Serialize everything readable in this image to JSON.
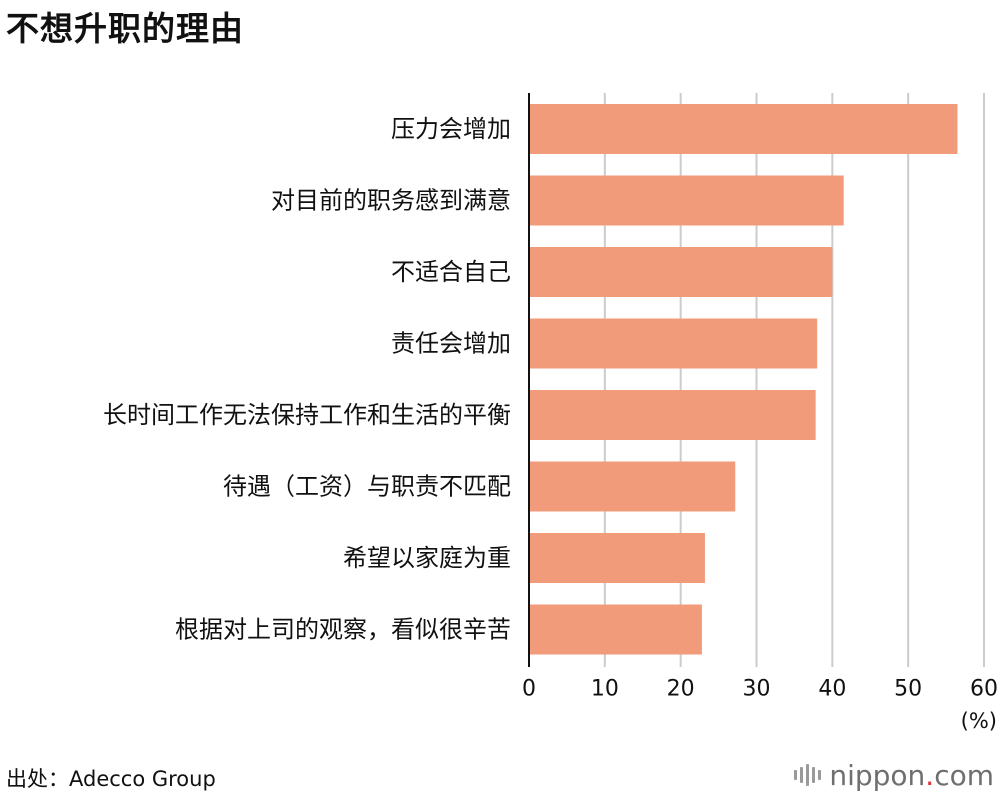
{
  "title": "不想升职的理由",
  "source": "出处：Adecco Group",
  "logo": {
    "name": "nippon",
    "dot": ".",
    "tld": "com"
  },
  "colors": {
    "bar": "#f29b7b",
    "grid": "#cccccc",
    "axis": "#111111",
    "text": "#111111"
  },
  "chart_data": {
    "type": "bar",
    "orientation": "horizontal",
    "title": "不想升职的理由",
    "categories": [
      "压力会增加",
      "对目前的职务感到满意",
      "不适合自己",
      "责任会增加",
      "长时间工作无法保持工作和生活的平衡",
      "待遇（工资）与职责不匹配",
      "希望以家庭为重",
      "根据对上司的观察，看似很辛苦"
    ],
    "values": [
      56.5,
      41.5,
      40.0,
      38.0,
      37.8,
      27.2,
      23.2,
      22.8
    ],
    "xlim": [
      0,
      60
    ],
    "xticks": [
      "0",
      "10",
      "20",
      "30",
      "40",
      "50",
      "60"
    ],
    "unit": "(%)",
    "grid": true,
    "legend": "none"
  }
}
